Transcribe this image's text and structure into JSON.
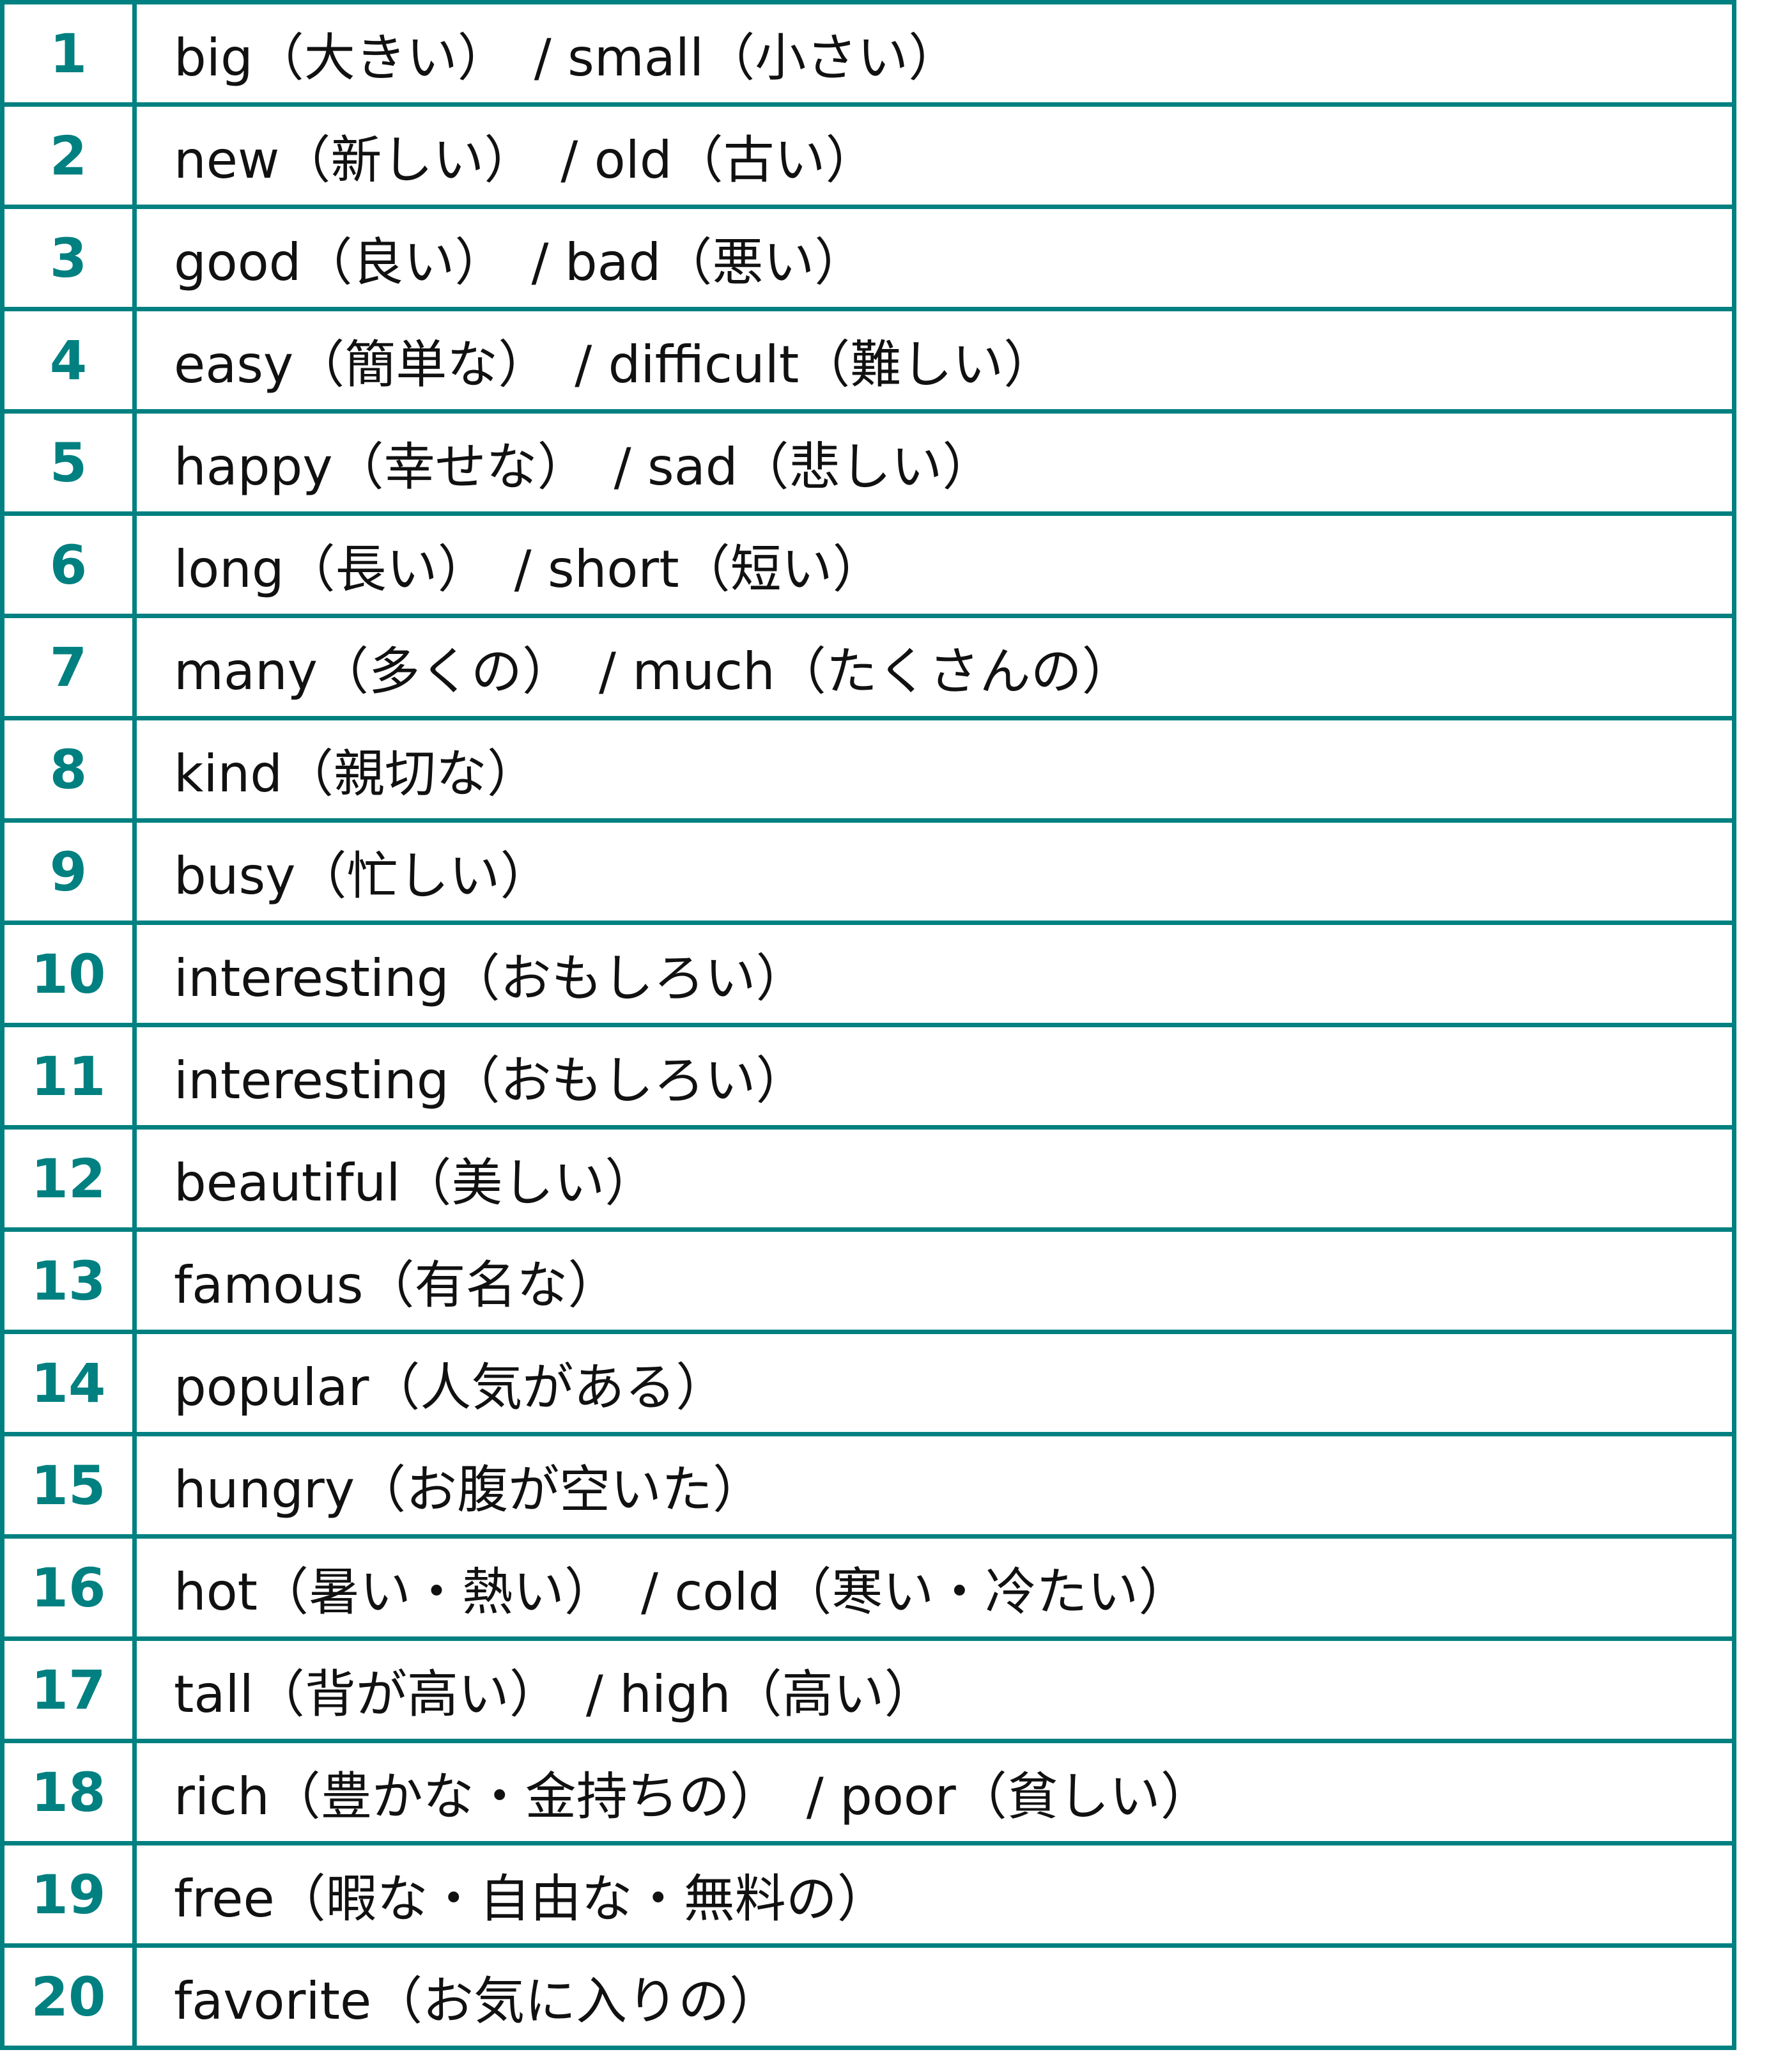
{
  "accent_color": "#008080",
  "rows": [
    {
      "num": "1",
      "text": "big（大きい）　/ small（小さい）"
    },
    {
      "num": "2",
      "text": "new（新しい）　/ old（古い）"
    },
    {
      "num": "3",
      "text": "good（良い）　/ bad（悪い）"
    },
    {
      "num": "4",
      "text": "easy（簡単な）　/ difficult（難しい）"
    },
    {
      "num": "5",
      "text": "happy（幸せな）　/ sad（悲しい）"
    },
    {
      "num": "6",
      "text": "long（長い）　/ short（短い）"
    },
    {
      "num": "7",
      "text": "many（多くの）　/ much（たくさんの）"
    },
    {
      "num": "8",
      "text": "kind（親切な）"
    },
    {
      "num": "9",
      "text": "busy（忙しい）"
    },
    {
      "num": "10",
      "text": "interesting（おもしろい）"
    },
    {
      "num": "11",
      "text": "interesting（おもしろい）"
    },
    {
      "num": "12",
      "text": "beautiful（美しい）"
    },
    {
      "num": "13",
      "text": "famous（有名な）"
    },
    {
      "num": "14",
      "text": "popular（人気がある）"
    },
    {
      "num": "15",
      "text": "hungry（お腹が空いた）"
    },
    {
      "num": "16",
      "text": "hot（暑い・熱い）　/ cold（寒い・冷たい）"
    },
    {
      "num": "17",
      "text": "tall（背が高い）　/ high（高い）"
    },
    {
      "num": "18",
      "text": "rich（豊かな・金持ちの）　/ poor（貧しい）"
    },
    {
      "num": "19",
      "text": "free（暇な・自由な・無料の）"
    },
    {
      "num": "20",
      "text": "favorite（お気に入りの）"
    }
  ]
}
